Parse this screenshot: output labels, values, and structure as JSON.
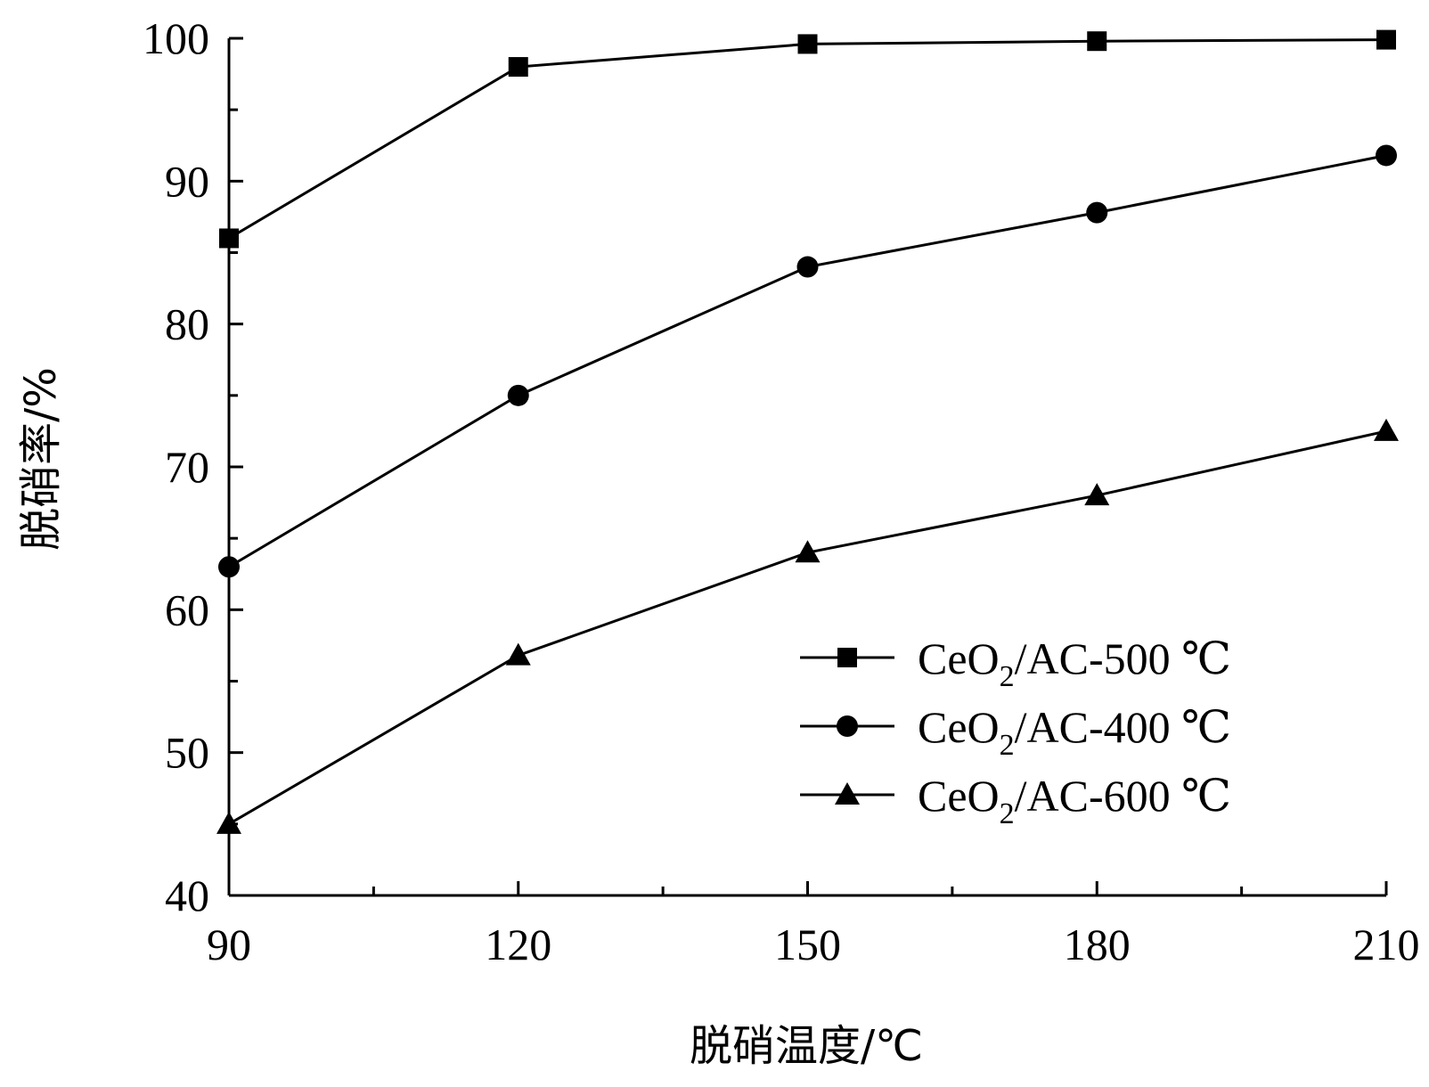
{
  "chart_data": {
    "type": "line",
    "title": "",
    "xlabel": "脱硝温度/℃",
    "ylabel": "脱硝率/%",
    "xlim": [
      90,
      210
    ],
    "ylim": [
      40,
      100
    ],
    "x": [
      90,
      120,
      150,
      180,
      210
    ],
    "x_ticks": [
      "90",
      "120",
      "150",
      "180",
      "210"
    ],
    "y_ticks": [
      "40",
      "50",
      "60",
      "70",
      "80",
      "90",
      "100"
    ],
    "grid": false,
    "legend_position": "bottom-right",
    "series": [
      {
        "name_prefix": "CeO",
        "name_sub": "2",
        "name_suffix": "/AC-500 ℃",
        "marker": "square",
        "values": [
          86.0,
          98.0,
          99.6,
          99.8,
          99.9
        ]
      },
      {
        "name_prefix": "CeO",
        "name_sub": "2",
        "name_suffix": "/AC-400 ℃",
        "marker": "circle",
        "values": [
          63.0,
          75.0,
          84.0,
          87.8,
          91.8
        ]
      },
      {
        "name_prefix": "CeO",
        "name_sub": "2",
        "name_suffix": "/AC-600 ℃",
        "marker": "triangle",
        "values": [
          45.0,
          56.8,
          64.0,
          68.0,
          72.5
        ]
      }
    ]
  }
}
